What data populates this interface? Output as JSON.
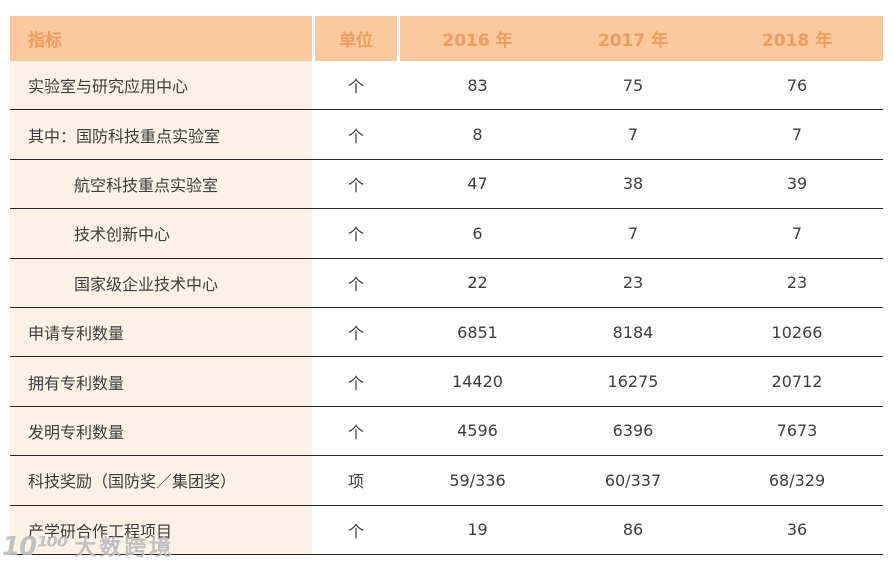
{
  "colors": {
    "header_bg": "#f9c99d",
    "header_text": "#ee9c61",
    "label_column_bg": "#fbf1e4",
    "body_text": "#3d3d3d",
    "row_line": "#262626"
  },
  "header": {
    "indicator": "指标",
    "unit": "单位",
    "years": [
      "2016 年",
      "2017 年",
      "2018 年"
    ]
  },
  "rows": [
    {
      "label": "实验室与研究应用中心",
      "unit": "个",
      "values": [
        "83",
        "75",
        "76"
      ]
    },
    {
      "label": "其中：国防科技重点实验室",
      "unit": "个",
      "values": [
        "8",
        "7",
        "7"
      ]
    },
    {
      "label": "航空科技重点实验室",
      "unit": "个",
      "values": [
        "47",
        "38",
        "39"
      ]
    },
    {
      "label": "技术创新中心",
      "unit": "个",
      "values": [
        "6",
        "7",
        "7"
      ]
    },
    {
      "label": "国家级企业技术中心",
      "unit": "个",
      "values": [
        "22",
        "23",
        "23"
      ]
    },
    {
      "label": "申请专利数量",
      "unit": "个",
      "values": [
        "6851",
        "8184",
        "10266"
      ]
    },
    {
      "label": "拥有专利数量",
      "unit": "个",
      "values": [
        "14420",
        "16275",
        "20712"
      ]
    },
    {
      "label": "发明专利数量",
      "unit": "个",
      "values": [
        "4596",
        "6396",
        "7673"
      ]
    },
    {
      "label": "科技奖励（国防奖／集团奖）",
      "unit": "项",
      "values": [
        "59/336",
        "60/337",
        "68/329"
      ]
    },
    {
      "label": "产学研合作工程项目",
      "unit": "个",
      "values": [
        "19",
        "86",
        "36"
      ]
    }
  ],
  "watermark": {
    "logo": "10¹⁰⁰",
    "text": "大数跨境"
  },
  "chart_data": {
    "type": "table",
    "title": "",
    "columns": [
      "指标",
      "单位",
      "2016 年",
      "2017 年",
      "2018 年"
    ],
    "rows": [
      [
        "实验室与研究应用中心",
        "个",
        "83",
        "75",
        "76"
      ],
      [
        "其中：国防科技重点实验室",
        "个",
        "8",
        "7",
        "7"
      ],
      [
        "航空科技重点实验室",
        "个",
        "47",
        "38",
        "39"
      ],
      [
        "技术创新中心",
        "个",
        "6",
        "7",
        "7"
      ],
      [
        "国家级企业技术中心",
        "个",
        "22",
        "23",
        "23"
      ],
      [
        "申请专利数量",
        "个",
        "6851",
        "8184",
        "10266"
      ],
      [
        "拥有专利数量",
        "个",
        "14420",
        "16275",
        "20712"
      ],
      [
        "发明专利数量",
        "个",
        "4596",
        "6396",
        "7673"
      ],
      [
        "科技奖励（国防奖／集团奖）",
        "项",
        "59/336",
        "60/337",
        "68/329"
      ],
      [
        "产学研合作工程项目",
        "个",
        "19",
        "86",
        "36"
      ]
    ]
  }
}
